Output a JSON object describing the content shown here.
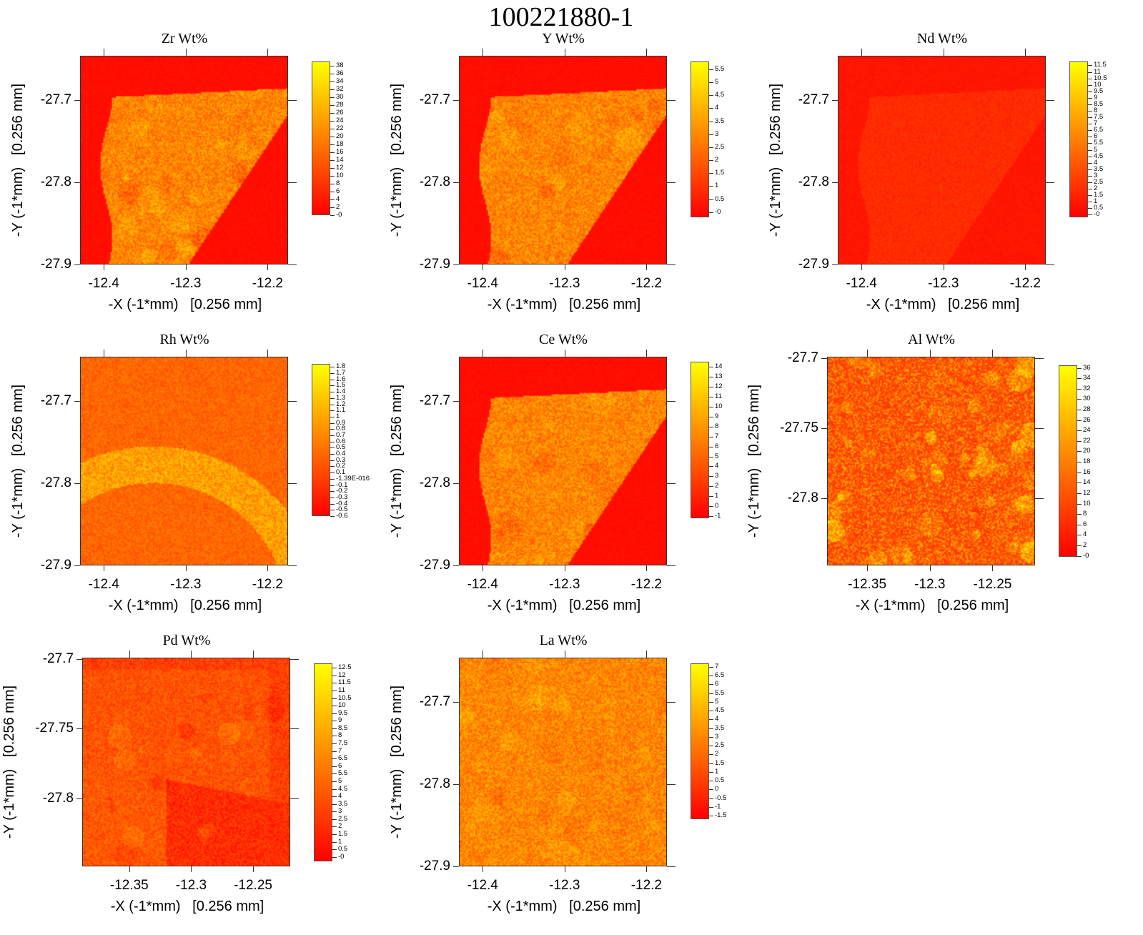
{
  "title": "100221880-1",
  "chart_data": [
    {
      "type": "heatmap",
      "title": "Zr Wt%",
      "xlabel": "-X (-1*mm)   [0.256 mm]",
      "ylabel": "-Y (-1*mm)   [0.256 mm]",
      "xlim": [
        -12.429,
        -12.175
      ],
      "ylim": [
        -27.9,
        -27.646
      ],
      "xticks": [
        "-12.4",
        "-12.3",
        "-12.2"
      ],
      "xtick_values": [
        -12.4,
        -12.3,
        -12.2
      ],
      "yticks": [
        "-27.7",
        "-27.8",
        "-27.9"
      ],
      "ytick_values": [
        -27.7,
        -27.8,
        -27.9
      ],
      "clim": [
        0,
        39
      ],
      "cbar_ticks": [
        "38",
        "36",
        "34",
        "32",
        "30",
        "28",
        "26",
        "24",
        "22",
        "20",
        "18",
        "16",
        "14",
        "12",
        "10",
        "8",
        "6",
        "4",
        "2",
        "-0"
      ]
    },
    {
      "type": "heatmap",
      "title": "Y Wt%",
      "xlabel": "-X (-1*mm)   [0.256 mm]",
      "ylabel": "-Y (-1*mm)   [0.256 mm]",
      "xlim": [
        -12.429,
        -12.175
      ],
      "ylim": [
        -27.9,
        -27.646
      ],
      "xticks": [
        "-12.4",
        "-12.3",
        "-12.2"
      ],
      "xtick_values": [
        -12.4,
        -12.3,
        -12.2
      ],
      "yticks": [
        "-27.7",
        "-27.8",
        "-27.9"
      ],
      "ytick_values": [
        -27.7,
        -27.8,
        -27.9
      ],
      "clim": [
        -0.2,
        5.8
      ],
      "cbar_ticks": [
        "5.5",
        "5",
        "4.5",
        "4",
        "3.5",
        "3",
        "2.5",
        "2",
        "1.5",
        "1",
        "0.5",
        "-0"
      ]
    },
    {
      "type": "heatmap",
      "title": "Nd Wt%",
      "xlabel": "-X (-1*mm)   [0.256 mm]",
      "ylabel": "-Y (-1*mm)   [0.256 mm]",
      "xlim": [
        -12.429,
        -12.175
      ],
      "ylim": [
        -27.9,
        -27.646
      ],
      "xticks": [
        "-12.4",
        "-12.3",
        "-12.2"
      ],
      "xtick_values": [
        -12.4,
        -12.3,
        -12.2
      ],
      "yticks": [
        "-27.7",
        "-27.8",
        "-27.9"
      ],
      "ytick_values": [
        -27.7,
        -27.8,
        -27.9
      ],
      "clim": [
        -0.2,
        11.8
      ],
      "cbar_ticks": [
        "11.5",
        "11",
        "10.5",
        "10",
        "9.5",
        "9",
        "8.5",
        "8",
        "7.5",
        "7",
        "6.5",
        "6",
        "5.5",
        "5",
        "4.5",
        "4",
        "3.5",
        "3",
        "2.5",
        "2",
        "1.5",
        "1",
        "0.5",
        "-0"
      ]
    },
    {
      "type": "heatmap",
      "title": "Rh Wt%",
      "xlabel": "-X (-1*mm)   [0.256 mm]",
      "ylabel": "-Y (-1*mm)   [0.256 mm]",
      "xlim": [
        -12.429,
        -12.175
      ],
      "ylim": [
        -27.9,
        -27.646
      ],
      "xticks": [
        "-12.4",
        "-12.3",
        "-12.2"
      ],
      "xtick_values": [
        -12.4,
        -12.3,
        -12.2
      ],
      "yticks": [
        "-27.7",
        "-27.8",
        "-27.9"
      ],
      "ytick_values": [
        -27.7,
        -27.8,
        -27.9
      ],
      "clim": [
        -0.6,
        1.85
      ],
      "cbar_ticks": [
        "1.8",
        "1.7",
        "1.6",
        "1.5",
        "1.4",
        "1.3",
        "1.2",
        "1.1",
        "1",
        "0.9",
        "0.8",
        "0.7",
        "0.6",
        "0.5",
        "0.4",
        "0.3",
        "0.2",
        "0.1",
        "-1.39E-016",
        "-0.1",
        "-0.2",
        "-0.3",
        "-0.4",
        "-0.5",
        "-0.6"
      ]
    },
    {
      "type": "heatmap",
      "title": "Ce Wt%",
      "xlabel": "-X (-1*mm)   [0.256 mm]",
      "ylabel": "-Y (-1*mm)   [0.256 mm]",
      "xlim": [
        -12.429,
        -12.175
      ],
      "ylim": [
        -27.9,
        -27.646
      ],
      "xticks": [
        "-12.4",
        "-12.3",
        "-12.2"
      ],
      "xtick_values": [
        -12.4,
        -12.3,
        -12.2
      ],
      "yticks": [
        "-27.7",
        "-27.8",
        "-27.9"
      ],
      "ytick_values": [
        -27.7,
        -27.8,
        -27.9
      ],
      "clim": [
        -1.2,
        14.5
      ],
      "cbar_ticks": [
        "14",
        "13",
        "12",
        "11",
        "10",
        "9",
        "8",
        "7",
        "6",
        "5",
        "4",
        "3",
        "2",
        "1",
        "0",
        "-1"
      ]
    },
    {
      "type": "heatmap",
      "title": "Al Wt%",
      "xlabel": "-X (-1*mm)   [0.256 mm]",
      "ylabel": "-Y (-1*mm)   [0.256 mm]",
      "xlim": [
        -12.382,
        -12.216
      ],
      "ylim": [
        -27.848,
        -27.699
      ],
      "xticks": [
        "-12.35",
        "-12.3",
        "-12.25"
      ],
      "xtick_values": [
        -12.35,
        -12.3,
        -12.25
      ],
      "yticks": [
        "-27.7",
        "-27.75",
        "-27.8"
      ],
      "ytick_values": [
        -27.7,
        -27.75,
        -27.8
      ],
      "clim": [
        -0.2,
        36.5
      ],
      "cbar_ticks": [
        "36",
        "34",
        "32",
        "30",
        "28",
        "26",
        "24",
        "22",
        "20",
        "18",
        "16",
        "14",
        "12",
        "10",
        "8",
        "6",
        "4",
        "2",
        "-0"
      ]
    },
    {
      "type": "heatmap",
      "title": "Pd Wt%",
      "xlabel": "-X (-1*mm)   [0.256 mm]",
      "ylabel": "-Y (-1*mm)   [0.256 mm]",
      "xlim": [
        -12.388,
        -12.22
      ],
      "ylim": [
        -27.849,
        -27.699
      ],
      "xticks": [
        "-12.35",
        "-12.3",
        "-12.25"
      ],
      "xtick_values": [
        -12.35,
        -12.3,
        -12.25
      ],
      "yticks": [
        "-27.7",
        "-27.75",
        "-27.8"
      ],
      "ytick_values": [
        -27.7,
        -27.75,
        -27.8
      ],
      "clim": [
        -0.3,
        12.8
      ],
      "cbar_ticks": [
        "12.5",
        "12",
        "11.5",
        "11",
        "10.5",
        "10",
        "9.5",
        "9",
        "8.5",
        "8",
        "7.5",
        "7",
        "6.5",
        "6",
        "5.5",
        "5",
        "4.5",
        "4",
        "3.5",
        "3",
        "2.5",
        "2",
        "1.5",
        "1",
        "0.5",
        "-0"
      ]
    },
    {
      "type": "heatmap",
      "title": "La Wt%",
      "xlabel": "-X (-1*mm)   [0.256 mm]",
      "ylabel": "-Y (-1*mm)   [0.256 mm]",
      "xlim": [
        -12.429,
        -12.175
      ],
      "ylim": [
        -27.9,
        -27.646
      ],
      "xticks": [
        "-12.4",
        "-12.3",
        "-12.2"
      ],
      "xtick_values": [
        -12.4,
        -12.3,
        -12.2
      ],
      "yticks": [
        "-27.7",
        "-27.8",
        "-27.9"
      ],
      "ytick_values": [
        -27.7,
        -27.8,
        -27.9
      ],
      "clim": [
        -1.7,
        7.2
      ],
      "cbar_ticks": [
        "7",
        "6.5",
        "6",
        "5.5",
        "5",
        "4.5",
        "4",
        "3.5",
        "3",
        "2.5",
        "2",
        "1.5",
        "1",
        "0.5",
        "0",
        "-0.5",
        "-1",
        "-1.5"
      ]
    }
  ]
}
